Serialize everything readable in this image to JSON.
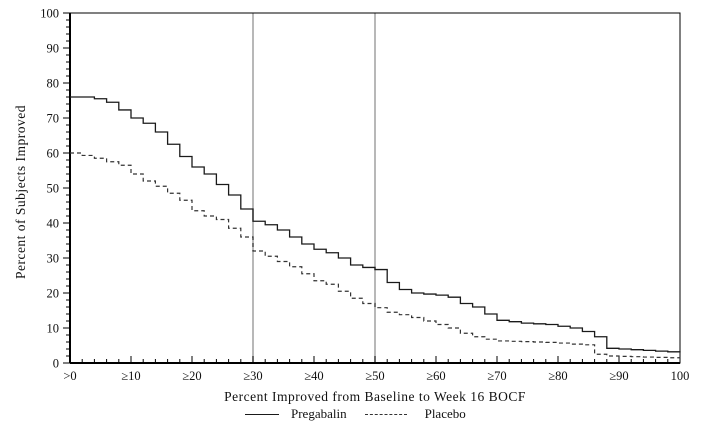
{
  "chart_data": {
    "type": "line",
    "title": "",
    "xlabel": "Percent Improved from Baseline to Week 16 BOCF",
    "ylabel": "Percent of Subjects Improved",
    "xlim": [
      0,
      100
    ],
    "ylim": [
      0,
      100
    ],
    "x_ticks": [
      0,
      10,
      20,
      30,
      40,
      50,
      60,
      70,
      80,
      90,
      100
    ],
    "x_tick_labels": [
      ">0",
      "≥10",
      "≥20",
      "≥30",
      "≥40",
      "≥50",
      "≥60",
      "≥70",
      "≥80",
      "≥90",
      "100"
    ],
    "y_ticks": [
      0,
      10,
      20,
      30,
      40,
      50,
      60,
      70,
      80,
      90,
      100
    ],
    "minor_tick_step": 2,
    "grid": "off",
    "reference_lines_x": [
      30,
      50
    ],
    "legend_position": "bottom",
    "colors": {
      "line": "#1a1a1a",
      "dashed_line": "#333333",
      "reference_line": "#a0a0a0",
      "frame": "#000000"
    },
    "x": [
      0,
      2,
      4,
      6,
      8,
      10,
      12,
      14,
      16,
      18,
      20,
      22,
      24,
      26,
      28,
      30,
      32,
      34,
      36,
      38,
      40,
      42,
      44,
      46,
      48,
      50,
      52,
      54,
      56,
      58,
      60,
      62,
      64,
      66,
      68,
      70,
      72,
      74,
      76,
      78,
      80,
      82,
      84,
      86,
      88,
      90,
      92,
      94,
      96,
      98,
      100
    ],
    "series": [
      {
        "name": "Pregabalin",
        "style": "solid",
        "values": [
          76,
          76,
          75.5,
          74.5,
          72.3,
          70,
          68.5,
          66,
          62.5,
          59,
          56,
          54,
          51,
          48,
          44,
          40.5,
          39.5,
          38,
          36,
          34,
          32.5,
          31.5,
          30,
          28,
          27.3,
          26.7,
          23,
          21,
          20,
          19.7,
          19.4,
          18.8,
          17,
          16,
          14,
          12.2,
          11.8,
          11.4,
          11.2,
          11,
          10.5,
          10,
          9,
          7.5,
          4.2,
          4,
          3.8,
          3.6,
          3.4,
          3.2,
          3
        ]
      },
      {
        "name": "Placebo",
        "style": "dashed",
        "values": [
          60,
          59.3,
          58.5,
          57.5,
          56.5,
          54,
          52,
          50.5,
          48.5,
          46.5,
          43.5,
          42,
          41,
          38.5,
          36,
          32,
          30.5,
          29,
          27.5,
          25.5,
          23.5,
          22.5,
          20.5,
          18.5,
          17,
          15.8,
          14.5,
          13.8,
          13,
          12,
          11,
          10,
          8.5,
          7.5,
          6.8,
          6.3,
          6.2,
          6.1,
          6,
          5.9,
          5.7,
          5.4,
          5.2,
          2.5,
          2,
          1.9,
          1.8,
          1.7,
          1.6,
          1.5,
          1.4
        ]
      }
    ]
  },
  "legend": {
    "pregabalin_label": "Pregabalin",
    "placebo_label": "Placebo"
  }
}
